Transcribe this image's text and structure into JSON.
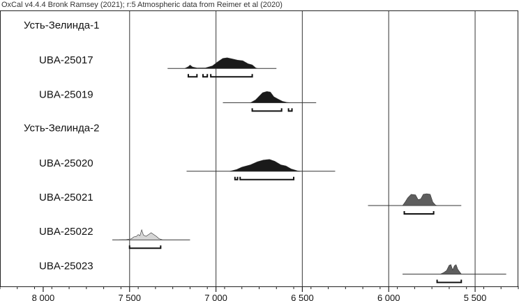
{
  "header": "OxCal v4.4.4 Bronk Ramsey (2021); r:5 Atmospheric data from Reimer et al (2020)",
  "chart_data": {
    "type": "multiplot",
    "xlabel": "",
    "xlim": [
      8250,
      5250
    ],
    "major_ticks": [
      8000,
      7500,
      7000,
      6500,
      6000,
      5500
    ],
    "tick_labels": [
      "8 000",
      "7 500",
      "7 000",
      "6 500",
      "6 000",
      "5 500"
    ],
    "minor_tick_step": 100,
    "vertical_gridlines": [
      7500,
      7000,
      6500,
      6000,
      5500
    ],
    "rows": [
      {
        "kind": "group",
        "label": "Усть-Зелинда-1"
      },
      {
        "kind": "date",
        "label": "UBA-25017",
        "fill": "#1a1a1a",
        "span": [
          7280,
          6650
        ],
        "density": [
          [
            7180,
            0
          ],
          [
            7160,
            0.15
          ],
          [
            7150,
            0.28
          ],
          [
            7135,
            0.12
          ],
          [
            7110,
            0.04
          ],
          [
            7060,
            0.05
          ],
          [
            7020,
            0.22
          ],
          [
            6990,
            0.55
          ],
          [
            6960,
            0.85
          ],
          [
            6935,
            0.9
          ],
          [
            6905,
            0.8
          ],
          [
            6875,
            0.7
          ],
          [
            6845,
            0.65
          ],
          [
            6815,
            0.4
          ],
          [
            6790,
            0.3
          ],
          [
            6770,
            0.05
          ],
          [
            6760,
            0
          ]
        ],
        "hpd": [
          [
            7160,
            7110
          ],
          [
            7075,
            7050
          ],
          [
            7030,
            6790
          ]
        ]
      },
      {
        "kind": "date",
        "label": "UBA-25019",
        "fill": "#1a1a1a",
        "span": [
          6960,
          6420
        ],
        "density": [
          [
            6800,
            0
          ],
          [
            6770,
            0.25
          ],
          [
            6750,
            0.55
          ],
          [
            6730,
            0.85
          ],
          [
            6705,
            0.95
          ],
          [
            6685,
            0.9
          ],
          [
            6665,
            0.5
          ],
          [
            6640,
            0.3
          ],
          [
            6615,
            0.12
          ],
          [
            6590,
            0.03
          ],
          [
            6570,
            0
          ]
        ],
        "hpd": [
          [
            6790,
            6620
          ],
          [
            6580,
            6560
          ]
        ]
      },
      {
        "kind": "group",
        "label": "Усть-Зелинда-2"
      },
      {
        "kind": "date",
        "label": "UBA-25020",
        "fill": "#1a1a1a",
        "span": [
          7170,
          6310
        ],
        "density": [
          [
            6920,
            0
          ],
          [
            6880,
            0.15
          ],
          [
            6850,
            0.35
          ],
          [
            6800,
            0.55
          ],
          [
            6760,
            0.8
          ],
          [
            6725,
            0.95
          ],
          [
            6690,
            1.0
          ],
          [
            6660,
            0.85
          ],
          [
            6625,
            0.55
          ],
          [
            6595,
            0.45
          ],
          [
            6565,
            0.2
          ],
          [
            6530,
            0.05
          ],
          [
            6510,
            0
          ]
        ],
        "hpd": [
          [
            6890,
            6875
          ],
          [
            6860,
            6550
          ]
        ]
      },
      {
        "kind": "date",
        "label": "UBA-25021",
        "fill": "#5e5e5e",
        "span": [
          6120,
          5580
        ],
        "density": [
          [
            5920,
            0
          ],
          [
            5905,
            0.3
          ],
          [
            5890,
            0.65
          ],
          [
            5870,
            0.95
          ],
          [
            5845,
            0.9
          ],
          [
            5830,
            0.5
          ],
          [
            5815,
            0.55
          ],
          [
            5800,
            0.95
          ],
          [
            5780,
            1.0
          ],
          [
            5760,
            0.95
          ],
          [
            5745,
            0.3
          ],
          [
            5730,
            0.05
          ],
          [
            5720,
            0
          ]
        ],
        "hpd": [
          [
            5910,
            5740
          ]
        ]
      },
      {
        "kind": "date",
        "label": "UBA-25022",
        "fill": "#d6d6d6",
        "span": [
          7600,
          7150
        ],
        "density": [
          [
            7560,
            0
          ],
          [
            7520,
            0.02
          ],
          [
            7490,
            0.08
          ],
          [
            7475,
            0.25
          ],
          [
            7460,
            0.3
          ],
          [
            7450,
            0.45
          ],
          [
            7440,
            0.35
          ],
          [
            7430,
            0.85
          ],
          [
            7420,
            0.4
          ],
          [
            7405,
            0.3
          ],
          [
            7390,
            0.45
          ],
          [
            7375,
            0.6
          ],
          [
            7360,
            0.45
          ],
          [
            7345,
            0.3
          ],
          [
            7330,
            0.1
          ],
          [
            7310,
            0
          ]
        ],
        "hpd": [
          [
            7500,
            7320
          ]
        ]
      },
      {
        "kind": "date",
        "label": "UBA-25023",
        "fill": "#5e5e5e",
        "span": [
          5920,
          5320
        ],
        "density": [
          [
            5700,
            0
          ],
          [
            5680,
            0.15
          ],
          [
            5665,
            0.3
          ],
          [
            5650,
            0.75
          ],
          [
            5640,
            0.8
          ],
          [
            5630,
            0.35
          ],
          [
            5620,
            0.7
          ],
          [
            5610,
            0.8
          ],
          [
            5600,
            0.4
          ],
          [
            5580,
            0
          ]
        ],
        "hpd": [
          [
            5720,
            5580
          ]
        ]
      }
    ]
  }
}
